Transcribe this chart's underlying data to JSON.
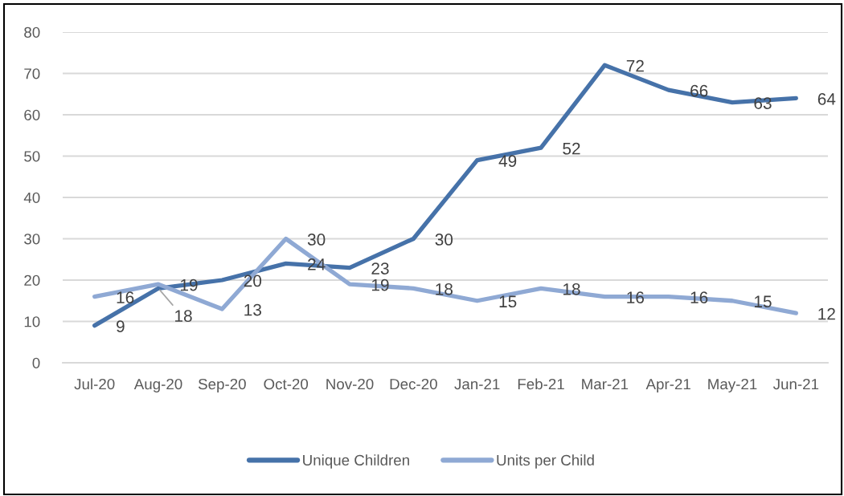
{
  "chart_data": {
    "type": "line",
    "categories": [
      "Jul-20",
      "Aug-20",
      "Sep-20",
      "Oct-20",
      "Nov-20",
      "Dec-20",
      "Jan-21",
      "Feb-21",
      "Mar-21",
      "Apr-21",
      "May-21",
      "Jun-21"
    ],
    "series": [
      {
        "name": "Unique Children",
        "color": "#4672a9",
        "values": [
          9,
          18,
          20,
          24,
          23,
          30,
          49,
          52,
          72,
          66,
          63,
          64
        ]
      },
      {
        "name": "Units per Child",
        "color": "#8fa9d4",
        "values": [
          16,
          19,
          13,
          30,
          19,
          18,
          15,
          18,
          16,
          16,
          15,
          12
        ]
      }
    ],
    "ylim": [
      0,
      80
    ],
    "yticks": [
      0,
      10,
      20,
      30,
      40,
      50,
      60,
      70,
      80
    ],
    "grid": "y",
    "legend": "bottom",
    "data_labels": true
  }
}
